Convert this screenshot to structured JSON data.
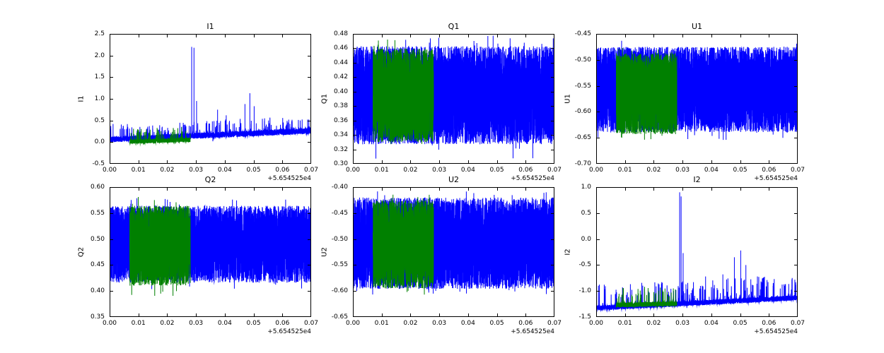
{
  "figure_title": "",
  "chart_data": {
    "type": "line",
    "grid": "off",
    "legend": "none",
    "layout_grid": "2 rows x 3 columns",
    "colors": {
      "blue_series": "#0000ff",
      "green_series": "#008000",
      "axis": "#000000",
      "background": "#ffffff"
    },
    "x_axis": {
      "lim": [
        0.0,
        0.07
      ],
      "tick_labels": [
        "0.00",
        "0.01",
        "0.02",
        "0.03",
        "0.04",
        "0.05",
        "0.06",
        "0.07"
      ],
      "offset_label": "+5.654525e4"
    },
    "green_segment_x": [
      0.007,
      0.028
    ],
    "subplots": [
      {
        "title": "I1",
        "ylabel": "I1",
        "kind": "spiky",
        "seed": 11,
        "ylim": [
          -0.5,
          2.5
        ],
        "ytick_labels": [
          "-0.5",
          "0.0",
          "0.5",
          "1.0",
          "1.5",
          "2.0",
          "2.5"
        ],
        "blue": {
          "base_start": 0.06,
          "base_end": 0.26,
          "noise": 0.07,
          "spike_prob": 0.05,
          "small_spike_max": 0.35,
          "tail_prob": 0.003,
          "tail": 0.15
        },
        "green": {
          "base_start": 0.0,
          "base_end": 0.13,
          "noise": 0.05,
          "spike_prob": 0.06,
          "small_spike_max": 0.3
        },
        "spikes": [
          [
            0.0012,
            0.42
          ],
          [
            0.0285,
            2.2
          ],
          [
            0.0293,
            2.18
          ],
          [
            0.0302,
            0.95
          ],
          [
            0.0375,
            0.75
          ],
          [
            0.0405,
            0.62
          ],
          [
            0.047,
            0.88
          ],
          [
            0.0487,
            1.13
          ],
          [
            0.0502,
            0.83
          ],
          [
            0.0552,
            0.5
          ],
          [
            0.0622,
            0.52
          ],
          [
            0.0662,
            0.5
          ]
        ]
      },
      {
        "title": "Q1",
        "ylabel": "Q1",
        "kind": "band",
        "seed": 22,
        "ylim": [
          0.3,
          0.48
        ],
        "ytick_labels": [
          "0.30",
          "0.32",
          "0.34",
          "0.36",
          "0.38",
          "0.40",
          "0.42",
          "0.44",
          "0.46",
          "0.48"
        ],
        "blue": {
          "center": 0.395,
          "half": 0.068,
          "tail_prob": 0.004,
          "tail": 0.02
        },
        "green": {
          "center": 0.395,
          "half": 0.065,
          "tail_prob": 0.003,
          "tail": 0.015
        },
        "spikes": []
      },
      {
        "title": "U1",
        "ylabel": "U1",
        "kind": "band",
        "seed": 33,
        "ylim": [
          -0.7,
          -0.45
        ],
        "ytick_labels": [
          "-0.70",
          "-0.65",
          "-0.60",
          "-0.55",
          "-0.50",
          "-0.45"
        ],
        "blue": {
          "center": -0.557,
          "half": 0.082,
          "tail_prob": 0.003,
          "tail": 0.015
        },
        "green": {
          "center": -0.565,
          "half": 0.078,
          "tail_prob": 0.003,
          "tail": 0.012
        },
        "spikes": []
      },
      {
        "title": "Q2",
        "ylabel": "Q2",
        "kind": "band",
        "seed": 44,
        "ylim": [
          0.35,
          0.6
        ],
        "ytick_labels": [
          "0.35",
          "0.40",
          "0.45",
          "0.50",
          "0.55",
          "0.60"
        ],
        "blue": {
          "center": 0.49,
          "half": 0.074,
          "tail_prob": 0.003,
          "tail": 0.015
        },
        "green": {
          "center": 0.487,
          "half": 0.077,
          "tail_prob": 0.004,
          "tail": 0.022
        },
        "spikes": []
      },
      {
        "title": "U2",
        "ylabel": "U2",
        "kind": "band",
        "seed": 55,
        "ylim": [
          -0.65,
          -0.4
        ],
        "ytick_labels": [
          "-0.65",
          "-0.60",
          "-0.55",
          "-0.50",
          "-0.45",
          "-0.40"
        ],
        "blue": {
          "center": -0.508,
          "half": 0.088,
          "tail_prob": 0.003,
          "tail": 0.012
        },
        "green": {
          "center": -0.51,
          "half": 0.085,
          "tail_prob": 0.003,
          "tail": 0.012
        },
        "spikes": []
      },
      {
        "title": "I2",
        "ylabel": "I2",
        "kind": "spiky",
        "seed": 66,
        "ylim": [
          -1.5,
          1.0
        ],
        "ytick_labels": [
          "-1.5",
          "-1.0",
          "-0.5",
          "0.0",
          "0.5",
          "1.0"
        ],
        "blue": {
          "base_start": -1.33,
          "base_end": -1.13,
          "noise": 0.05,
          "spike_prob": 0.05,
          "small_spike_max": 0.45,
          "tail_prob": 0.003,
          "tail": 0.12
        },
        "green": {
          "base_start": -1.28,
          "base_end": -1.19,
          "noise": 0.045,
          "spike_prob": 0.05,
          "small_spike_max": 0.35
        },
        "spikes": [
          [
            0.029,
            0.9
          ],
          [
            0.0295,
            0.82
          ],
          [
            0.0302,
            -0.27
          ],
          [
            0.0335,
            -0.95
          ],
          [
            0.038,
            -0.72
          ],
          [
            0.044,
            -0.68
          ],
          [
            0.048,
            -0.35
          ],
          [
            0.0502,
            -0.22
          ],
          [
            0.052,
            -0.5
          ],
          [
            0.056,
            -0.72
          ],
          [
            0.0615,
            -0.85
          ],
          [
            0.0655,
            -0.9
          ]
        ]
      }
    ]
  }
}
